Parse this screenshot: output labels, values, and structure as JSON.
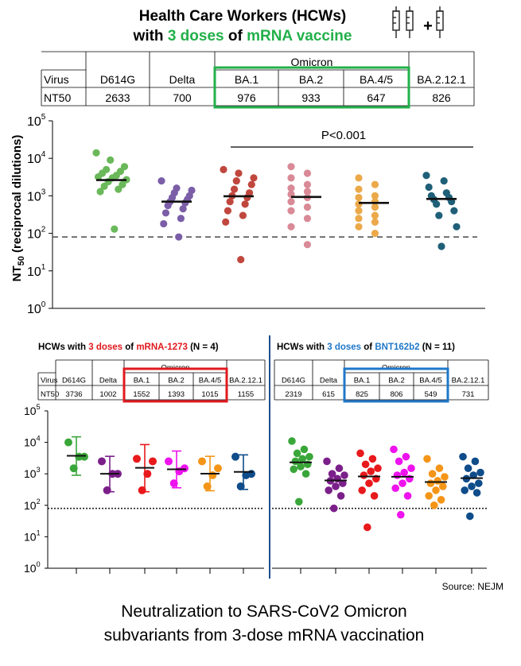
{
  "header": {
    "line1": "Health Care Workers (HCWs)",
    "line2_pre": "with ",
    "line2_doses": "3 doses",
    "line2_mid": " of ",
    "line2_vaccine": "mRNA vaccine",
    "plus": "+",
    "icon": "three-syringes-icon"
  },
  "colors": {
    "green": "#22b04a",
    "red": "#e0191e",
    "blue": "#1f78c8",
    "highlight_red": "#e0191e",
    "highlight_blue": "#1f78c8",
    "D614G": "#6ab85a",
    "Delta": "#7b5ea7",
    "BA.1": "#c0473e",
    "BA.2": "#d98a96",
    "BA.4/5": "#eba94a",
    "BA.2.12.1": "#1f5f78",
    "bottom": [
      "#3aa63a",
      "#7b1f8a",
      "#e8191c",
      "#ee12ee",
      "#f49518",
      "#0f4c8a"
    ]
  },
  "top_table": {
    "group_label": "Omicron",
    "row1_label": "Virus",
    "row2_label": "NT50",
    "variants": [
      "D614G",
      "Delta",
      "BA.1",
      "BA.2",
      "BA.4/5",
      "BA.2.12.1"
    ],
    "values": [
      "2633",
      "700",
      "976",
      "933",
      "647",
      "826"
    ]
  },
  "left_table": {
    "group_label": "Omicron",
    "row1_label": "Virus",
    "row2_label": "NT50",
    "variants": [
      "D614G",
      "Delta",
      "BA.1",
      "BA.2",
      "BA.4/5",
      "BA.2.12.1"
    ],
    "values": [
      "3736",
      "1002",
      "1552",
      "1393",
      "1015",
      "1155"
    ]
  },
  "right_table": {
    "group_label": "Omicron",
    "variants": [
      "D614G",
      "Delta",
      "BA.1",
      "BA.2",
      "BA.4/5",
      "BA.2.12.1"
    ],
    "values": [
      "2319",
      "615",
      "825",
      "806",
      "549",
      "731"
    ]
  },
  "panel_titles": {
    "left": {
      "pre": "HCWs with ",
      "doses": "3 doses",
      "mid": " of ",
      "vaccine": "mRNA-1273",
      "post": " (N = 4)"
    },
    "right": {
      "pre": "HCWs with ",
      "doses": "3 doses",
      "mid": " of ",
      "vaccine": "BNT162b2",
      "post": " (N = 11)"
    }
  },
  "source": "Source: NEJM",
  "caption_line1": "Neutralization to SARS-CoV2 Omicron",
  "caption_line2": "subvariants from 3-dose mRNA vaccination",
  "chart_data": [
    {
      "type": "scatter",
      "title": "",
      "ylabel": "NT50 (reciprocal dilutions)",
      "yscale": "log",
      "ylim": [
        1,
        100000
      ],
      "yticks": [
        "10^0",
        "10^1",
        "10^2",
        "10^3",
        "10^4",
        "10^5"
      ],
      "threshold": 80,
      "annotation": "P<0.001",
      "categories": [
        "D614G",
        "Delta",
        "BA.1",
        "BA.2",
        "BA.4/5",
        "BA.2.12.1"
      ],
      "medians": [
        2633,
        700,
        976,
        933,
        647,
        826
      ],
      "points": [
        [
          14000,
          9000,
          6000,
          5000,
          4500,
          4000,
          3500,
          3200,
          3000,
          2700,
          2400,
          2000,
          1800,
          1500,
          1300,
          130
        ],
        [
          2500,
          1600,
          1400,
          1200,
          1000,
          900,
          800,
          700,
          650,
          550,
          450,
          350,
          250,
          180,
          80
        ],
        [
          5000,
          4000,
          3000,
          2500,
          2000,
          1500,
          1200,
          1000,
          900,
          700,
          600,
          400,
          300,
          200,
          20
        ],
        [
          6000,
          4000,
          3000,
          2000,
          1600,
          1300,
          1100,
          900,
          700,
          500,
          400,
          250,
          150,
          50
        ],
        [
          3000,
          2000,
          1500,
          1000,
          900,
          700,
          600,
          500,
          400,
          300,
          250,
          200,
          150,
          100
        ],
        [
          3500,
          2500,
          1700,
          1200,
          1000,
          900,
          800,
          700,
          600,
          400,
          300,
          150,
          45
        ]
      ]
    },
    {
      "type": "scatter",
      "title": "HCWs with 3 doses of mRNA-1273 (N = 4)",
      "yscale": "log",
      "ylim": [
        1,
        100000
      ],
      "yticks": [
        "10^0",
        "10^1",
        "10^2",
        "10^3",
        "10^4",
        "10^5"
      ],
      "threshold": 80,
      "categories": [
        "D614G",
        "Delta",
        "BA.1",
        "BA.2",
        "BA.4/5",
        "BA.2.12.1"
      ],
      "medians": [
        3736,
        1002,
        1552,
        1393,
        1015,
        1155
      ],
      "ranges": [
        [
          900,
          15000
        ],
        [
          270,
          3600
        ],
        [
          270,
          8500
        ],
        [
          360,
          5300
        ],
        [
          290,
          3600
        ],
        [
          320,
          4000
        ]
      ],
      "points": [
        [
          10000,
          3500,
          3500,
          1500
        ],
        [
          2500,
          1000,
          1000,
          300
        ],
        [
          3000,
          2500,
          1000,
          300
        ],
        [
          2500,
          1500,
          1200,
          500
        ],
        [
          2500,
          1500,
          900,
          400
        ],
        [
          3500,
          1000,
          900,
          400
        ]
      ]
    },
    {
      "type": "scatter",
      "title": "HCWs with 3 doses of BNT162b2 (N = 11)",
      "yscale": "log",
      "ylim": [
        1,
        100000
      ],
      "threshold": 80,
      "categories": [
        "D614G",
        "Delta",
        "BA.1",
        "BA.2",
        "BA.4/5",
        "BA.2.12.1"
      ],
      "medians": [
        2319,
        615,
        825,
        806,
        549,
        731
      ],
      "points": [
        [
          11000,
          6000,
          4500,
          3500,
          3000,
          2500,
          2000,
          1700,
          1400,
          1000,
          130
        ],
        [
          2500,
          1500,
          1000,
          900,
          700,
          600,
          500,
          400,
          300,
          200,
          80
        ],
        [
          4500,
          3000,
          2000,
          1500,
          1200,
          900,
          700,
          500,
          300,
          200,
          20
        ],
        [
          6000,
          3500,
          2500,
          1500,
          1100,
          900,
          700,
          500,
          350,
          200,
          50
        ],
        [
          3000,
          1500,
          1000,
          800,
          600,
          500,
          400,
          300,
          200,
          150,
          100
        ],
        [
          3500,
          2500,
          1500,
          1100,
          900,
          700,
          500,
          400,
          300,
          250,
          45
        ]
      ]
    }
  ]
}
